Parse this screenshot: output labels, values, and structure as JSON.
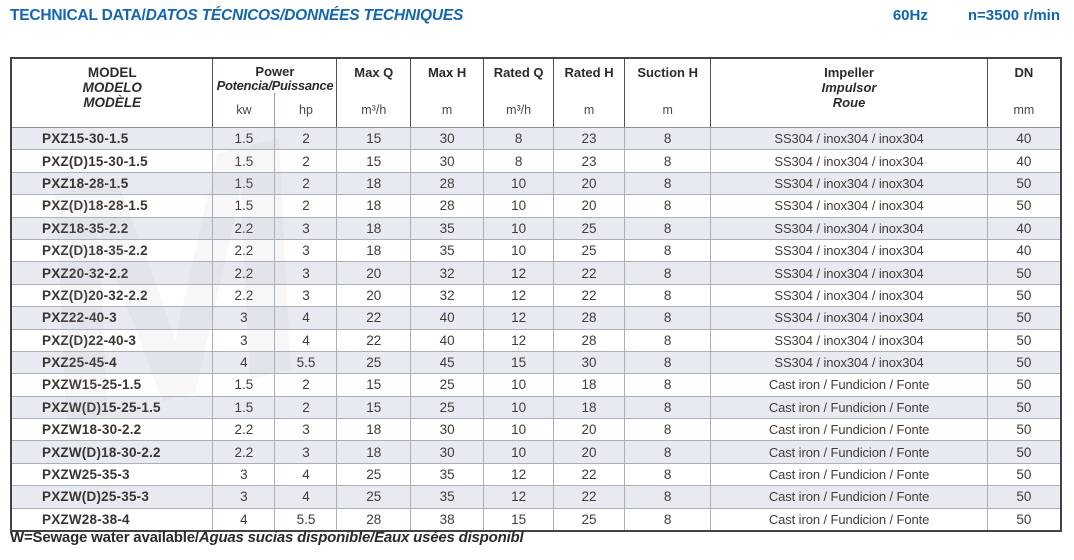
{
  "page": {
    "title_en": "TECHNICAL DATA/",
    "title_intl": "DATOS TÉCNICOS/DONNÉES TECHNIQUES",
    "frequency": "60Hz",
    "speed": "n=3500 r/min",
    "footnote_en": "W=Sewage water available/",
    "footnote_intl": "Aguas sucias disponible/Eaux usées disponibl"
  },
  "colors": {
    "accent_blue": "#1266b1",
    "row_stripe": "#e8eaf1",
    "grid_line": "#abb0b8",
    "outer_border": "#46423f",
    "text_dark": "#383432"
  },
  "table": {
    "header": {
      "model_lines": {
        "l1": "MODEL",
        "l2": "MODELO",
        "l3": "MODÈLE"
      },
      "power": {
        "label": "Power",
        "sub": "Potencia/Puissance",
        "unit_kw": "kw",
        "unit_hp": "hp"
      },
      "columns": [
        {
          "label": "Max Q",
          "unit": "m³/h"
        },
        {
          "label": "Max H",
          "unit": "m"
        },
        {
          "label": "Rated Q",
          "unit": "m³/h"
        },
        {
          "label": "Rated H",
          "unit": "m"
        },
        {
          "label": "Suction H",
          "unit": "m"
        }
      ],
      "impeller_lines": {
        "l1": "Impeller",
        "l2": "Impulsor",
        "l3": "Roue"
      },
      "dn": {
        "label": "DN",
        "unit": "mm"
      }
    },
    "rows": [
      {
        "model": "PXZ15-30-1.5",
        "kw": "1.5",
        "hp": "2",
        "max_q": "15",
        "max_h": "30",
        "rated_q": "8",
        "rated_h": "23",
        "suction_h": "8",
        "impeller": "SS304 / inox304 / inox304",
        "dn": "40"
      },
      {
        "model": "PXZ(D)15-30-1.5",
        "kw": "1.5",
        "hp": "2",
        "max_q": "15",
        "max_h": "30",
        "rated_q": "8",
        "rated_h": "23",
        "suction_h": "8",
        "impeller": "SS304 / inox304 / inox304",
        "dn": "40"
      },
      {
        "model": "PXZ18-28-1.5",
        "kw": "1.5",
        "hp": "2",
        "max_q": "18",
        "max_h": "28",
        "rated_q": "10",
        "rated_h": "20",
        "suction_h": "8",
        "impeller": "SS304 / inox304 / inox304",
        "dn": "50"
      },
      {
        "model": "PXZ(D)18-28-1.5",
        "kw": "1.5",
        "hp": "2",
        "max_q": "18",
        "max_h": "28",
        "rated_q": "10",
        "rated_h": "20",
        "suction_h": "8",
        "impeller": "SS304 / inox304 / inox304",
        "dn": "50"
      },
      {
        "model": "PXZ18-35-2.2",
        "kw": "2.2",
        "hp": "3",
        "max_q": "18",
        "max_h": "35",
        "rated_q": "10",
        "rated_h": "25",
        "suction_h": "8",
        "impeller": "SS304 / inox304 / inox304",
        "dn": "40"
      },
      {
        "model": "PXZ(D)18-35-2.2",
        "kw": "2.2",
        "hp": "3",
        "max_q": "18",
        "max_h": "35",
        "rated_q": "10",
        "rated_h": "25",
        "suction_h": "8",
        "impeller": "SS304 / inox304 / inox304",
        "dn": "40"
      },
      {
        "model": "PXZ20-32-2.2",
        "kw": "2.2",
        "hp": "3",
        "max_q": "20",
        "max_h": "32",
        "rated_q": "12",
        "rated_h": "22",
        "suction_h": "8",
        "impeller": "SS304 / inox304 / inox304",
        "dn": "50"
      },
      {
        "model": "PXZ(D)20-32-2.2",
        "kw": "2.2",
        "hp": "3",
        "max_q": "20",
        "max_h": "32",
        "rated_q": "12",
        "rated_h": "22",
        "suction_h": "8",
        "impeller": "SS304 / inox304 / inox304",
        "dn": "50"
      },
      {
        "model": "PXZ22-40-3",
        "kw": "3",
        "hp": "4",
        "max_q": "22",
        "max_h": "40",
        "rated_q": "12",
        "rated_h": "28",
        "suction_h": "8",
        "impeller": "SS304 / inox304 / inox304",
        "dn": "50"
      },
      {
        "model": "PXZ(D)22-40-3",
        "kw": "3",
        "hp": "4",
        "max_q": "22",
        "max_h": "40",
        "rated_q": "12",
        "rated_h": "28",
        "suction_h": "8",
        "impeller": "SS304 / inox304 / inox304",
        "dn": "50"
      },
      {
        "model": "PXZ25-45-4",
        "kw": "4",
        "hp": "5.5",
        "max_q": "25",
        "max_h": "45",
        "rated_q": "15",
        "rated_h": "30",
        "suction_h": "8",
        "impeller": "SS304 / inox304 / inox304",
        "dn": "50"
      },
      {
        "model": "PXZW15-25-1.5",
        "kw": "1.5",
        "hp": "2",
        "max_q": "15",
        "max_h": "25",
        "rated_q": "10",
        "rated_h": "18",
        "suction_h": "8",
        "impeller": "Cast iron / Fundicion / Fonte",
        "dn": "50"
      },
      {
        "model": "PXZW(D)15-25-1.5",
        "kw": "1.5",
        "hp": "2",
        "max_q": "15",
        "max_h": "25",
        "rated_q": "10",
        "rated_h": "18",
        "suction_h": "8",
        "impeller": "Cast iron / Fundicion / Fonte",
        "dn": "50"
      },
      {
        "model": "PXZW18-30-2.2",
        "kw": "2.2",
        "hp": "3",
        "max_q": "18",
        "max_h": "30",
        "rated_q": "10",
        "rated_h": "20",
        "suction_h": "8",
        "impeller": "Cast iron / Fundicion / Fonte",
        "dn": "50"
      },
      {
        "model": "PXZW(D)18-30-2.2",
        "kw": "2.2",
        "hp": "3",
        "max_q": "18",
        "max_h": "30",
        "rated_q": "10",
        "rated_h": "20",
        "suction_h": "8",
        "impeller": "Cast iron / Fundicion / Fonte",
        "dn": "50"
      },
      {
        "model": "PXZW25-35-3",
        "kw": "3",
        "hp": "4",
        "max_q": "25",
        "max_h": "35",
        "rated_q": "12",
        "rated_h": "22",
        "suction_h": "8",
        "impeller": "Cast iron / Fundicion / Fonte",
        "dn": "50"
      },
      {
        "model": "PXZW(D)25-35-3",
        "kw": "3",
        "hp": "4",
        "max_q": "25",
        "max_h": "35",
        "rated_q": "12",
        "rated_h": "22",
        "suction_h": "8",
        "impeller": "Cast iron / Fundicion / Fonte",
        "dn": "50"
      },
      {
        "model": "PXZW28-38-4",
        "kw": "4",
        "hp": "5.5",
        "max_q": "28",
        "max_h": "38",
        "rated_q": "15",
        "rated_h": "25",
        "suction_h": "8",
        "impeller": "Cast iron / Fundicion / Fonte",
        "dn": "50"
      }
    ]
  }
}
